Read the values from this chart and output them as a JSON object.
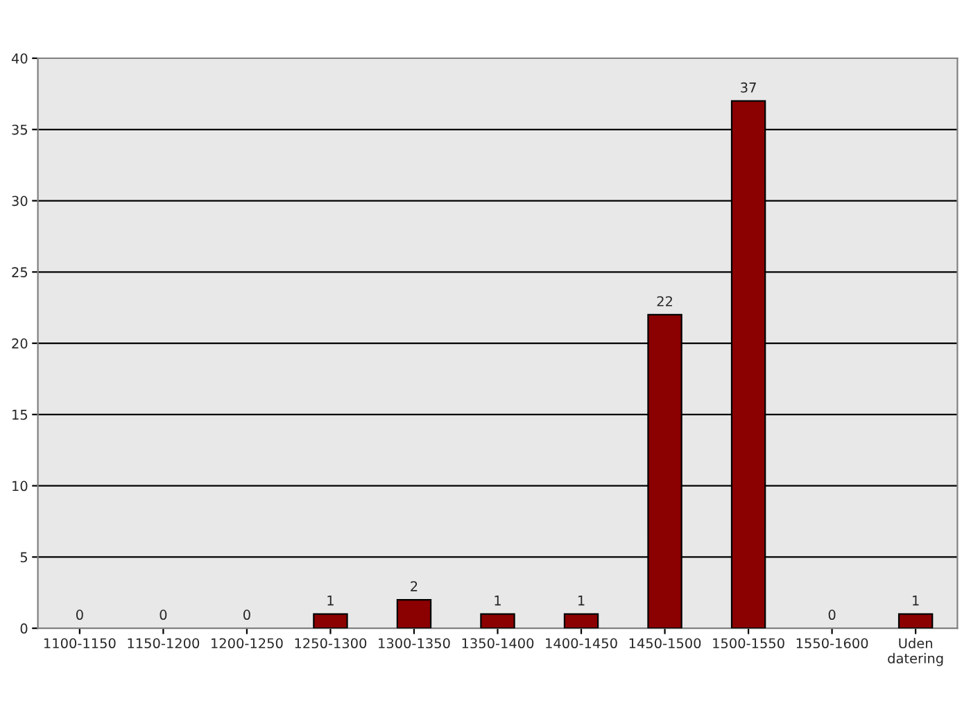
{
  "chart_data": {
    "type": "bar",
    "categories": [
      "1100-1150",
      "1150-1200",
      "1200-1250",
      "1250-1300",
      "1300-1350",
      "1350-1400",
      "1400-1450",
      "1450-1500",
      "1500-1550",
      "1550-1600",
      "Uden\ndatering"
    ],
    "values": [
      0,
      0,
      0,
      1,
      2,
      1,
      1,
      22,
      37,
      0,
      1
    ],
    "color": "#8b0000",
    "ylim": [
      0,
      40
    ],
    "yticks": [
      0,
      5,
      10,
      15,
      20,
      25,
      30,
      35,
      40
    ],
    "grid": "y",
    "data_labels": true,
    "legend": false
  }
}
